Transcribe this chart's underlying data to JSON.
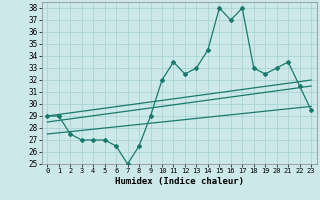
{
  "xlabel": "Humidex (Indice chaleur)",
  "background_color": "#cce8e8",
  "grid_color": "#aad4d4",
  "line_color": "#1a7a6e",
  "xlim": [
    -0.5,
    23.5
  ],
  "ylim": [
    25,
    38.5
  ],
  "yticks": [
    25,
    26,
    27,
    28,
    29,
    30,
    31,
    32,
    33,
    34,
    35,
    36,
    37,
    38
  ],
  "xticks": [
    0,
    1,
    2,
    3,
    4,
    5,
    6,
    7,
    8,
    9,
    10,
    11,
    12,
    13,
    14,
    15,
    16,
    17,
    18,
    19,
    20,
    21,
    22,
    23
  ],
  "main_y": [
    29,
    29,
    27.5,
    27,
    27,
    27,
    26.5,
    25,
    26.5,
    29,
    32,
    33.5,
    32.5,
    33,
    34.5,
    38,
    37,
    38,
    33,
    32.5,
    33,
    33.5,
    31.5,
    29.5
  ],
  "trend1_y": [
    29.0,
    29.13,
    29.26,
    29.39,
    29.52,
    29.65,
    29.78,
    29.91,
    30.04,
    30.17,
    30.3,
    30.43,
    30.56,
    30.69,
    30.82,
    30.95,
    31.08,
    31.21,
    31.34,
    31.47,
    31.6,
    31.73,
    31.86,
    32.0
  ],
  "trend2_y": [
    28.5,
    28.63,
    28.76,
    28.89,
    29.02,
    29.15,
    29.28,
    29.41,
    29.54,
    29.67,
    29.8,
    29.93,
    30.06,
    30.19,
    30.32,
    30.45,
    30.58,
    30.71,
    30.84,
    30.97,
    31.1,
    31.23,
    31.36,
    31.5
  ],
  "trend3_y": [
    27.5,
    27.6,
    27.7,
    27.8,
    27.9,
    28.0,
    28.1,
    28.2,
    28.3,
    28.4,
    28.5,
    28.6,
    28.7,
    28.8,
    28.9,
    29.0,
    29.1,
    29.2,
    29.3,
    29.4,
    29.5,
    29.6,
    29.7,
    29.8
  ]
}
